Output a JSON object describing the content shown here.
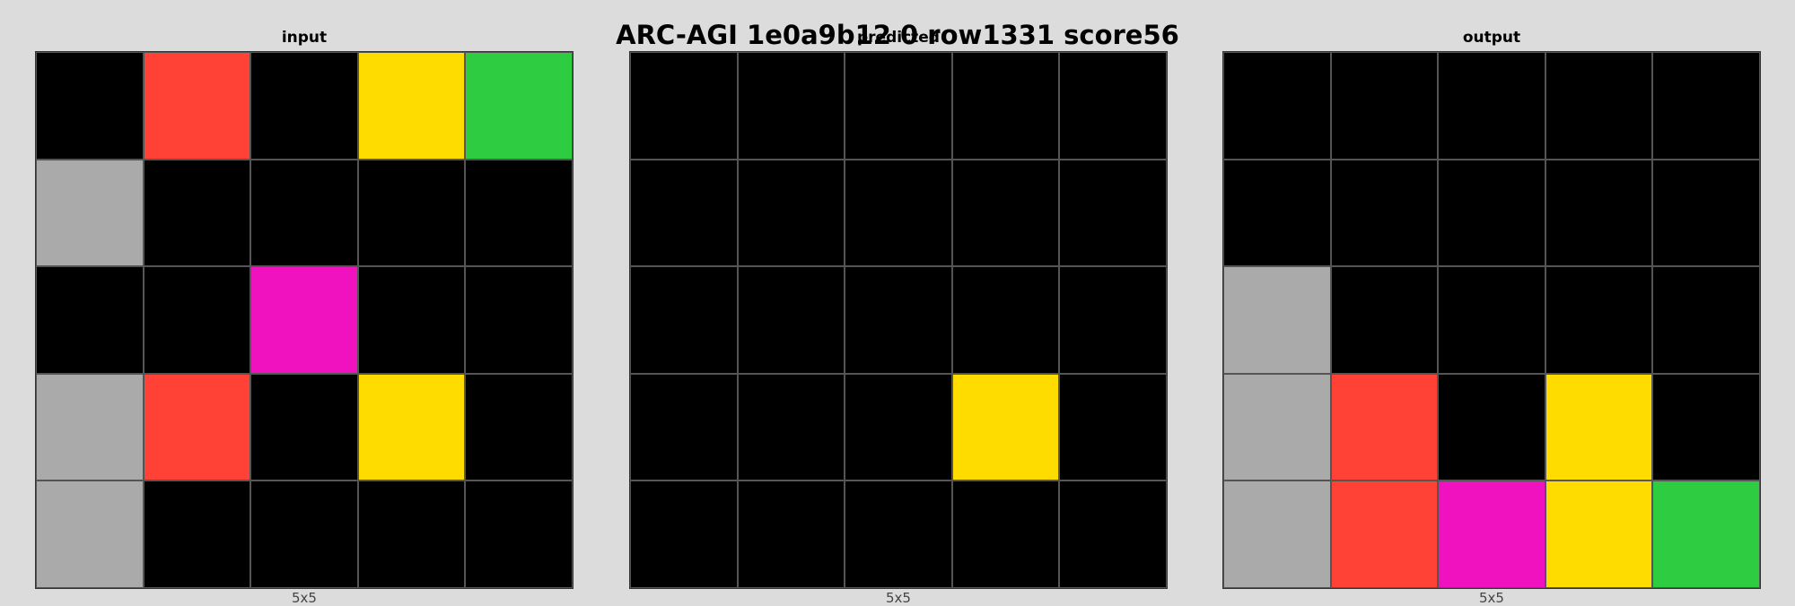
{
  "title": "ARC-AGI 1e0a9b12 0 row1331 score56",
  "palette": {
    "0": "#000000",
    "1": "#0074D9",
    "2": "#FF4136",
    "3": "#2ECC40",
    "4": "#FFDC00",
    "5": "#AAAAAA",
    "6": "#F012BE",
    "7": "#FF851B",
    "8": "#7FDBFF",
    "9": "#870C25"
  },
  "panels": [
    {
      "label": "input",
      "dims": "5x5",
      "grid": [
        [
          0,
          2,
          0,
          4,
          3
        ],
        [
          5,
          0,
          0,
          0,
          0
        ],
        [
          0,
          0,
          6,
          0,
          0
        ],
        [
          5,
          2,
          0,
          4,
          0
        ],
        [
          5,
          0,
          0,
          0,
          0
        ]
      ]
    },
    {
      "label": "predicted",
      "dims": "5x5",
      "grid": [
        [
          0,
          0,
          0,
          0,
          0
        ],
        [
          0,
          0,
          0,
          0,
          0
        ],
        [
          0,
          0,
          0,
          0,
          0
        ],
        [
          0,
          0,
          0,
          4,
          0
        ],
        [
          0,
          0,
          0,
          0,
          0
        ]
      ]
    },
    {
      "label": "output",
      "dims": "5x5",
      "grid": [
        [
          0,
          0,
          0,
          0,
          0
        ],
        [
          0,
          0,
          0,
          0,
          0
        ],
        [
          5,
          0,
          0,
          0,
          0
        ],
        [
          5,
          2,
          0,
          4,
          0
        ],
        [
          5,
          2,
          6,
          4,
          3
        ]
      ]
    }
  ]
}
